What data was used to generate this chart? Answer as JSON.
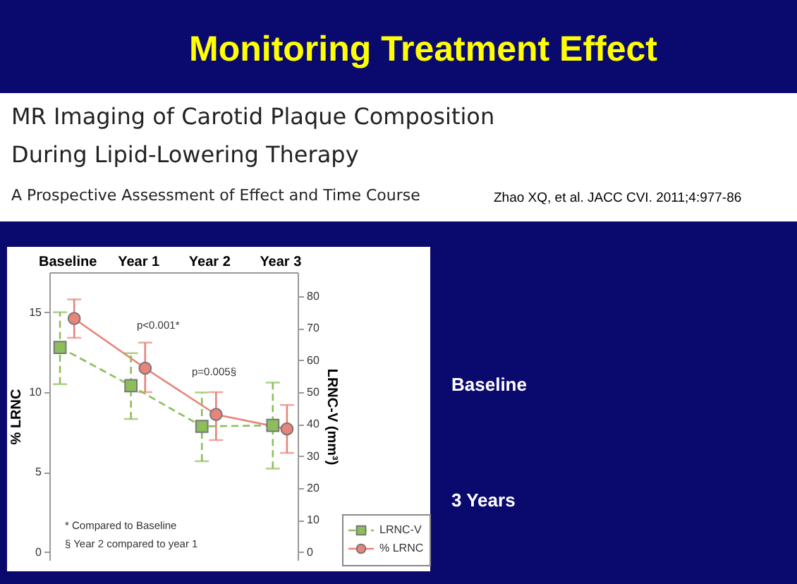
{
  "chart_data": {
    "type": "line",
    "title": "Monitoring Treatment Effect",
    "subtitle": "MR Imaging of Carotid Plaque Composition During Lipid-Lowering Therapy",
    "categories": [
      "Baseline",
      "Year 1",
      "Year 2",
      "Year 3"
    ],
    "ylabel": "% LRNC",
    "y2label": "LRNC-V (mm³)",
    "ylim": [
      -0.5,
      17.5
    ],
    "yticks": [
      0,
      5,
      10,
      15
    ],
    "y2lim": [
      -2.5,
      87.5
    ],
    "y2ticks": [
      0,
      10,
      20,
      30,
      40,
      50,
      60,
      70,
      80
    ],
    "series": [
      {
        "name": "LRNC-V",
        "color": "#8cbf5a",
        "axis": "y2",
        "marker": "square",
        "line_style": "dashed",
        "values": [
          64,
          52,
          39.3,
          39.6
        ],
        "errors": [
          [
            52.5,
            75
          ],
          [
            41.6,
            62.2
          ],
          [
            28.4,
            49.9
          ],
          [
            26.1,
            53
          ]
        ]
      },
      {
        "name": "% LRNC",
        "color": "#e8847a",
        "marker": "circle",
        "line_style": "solid",
        "values": [
          14.6,
          11.5,
          8.6,
          7.7
        ],
        "errors": [
          [
            13.4,
            15.8
          ],
          [
            10.0,
            13.1
          ],
          [
            7.0,
            10.0
          ],
          [
            6.2,
            9.2
          ]
        ]
      }
    ],
    "annotations": [
      "p<0.001*",
      "p=0.005§",
      "* Compared to Baseline",
      "§ Year 2 compared to year 1",
      "A Prospective Assessment of Effect and Time Course",
      "Zhao XQ, et al. JACC CVI. 2011;4:977-86",
      "Baseline",
      "3 Years"
    ],
    "legend": "bottom right",
    "grid": false
  }
}
